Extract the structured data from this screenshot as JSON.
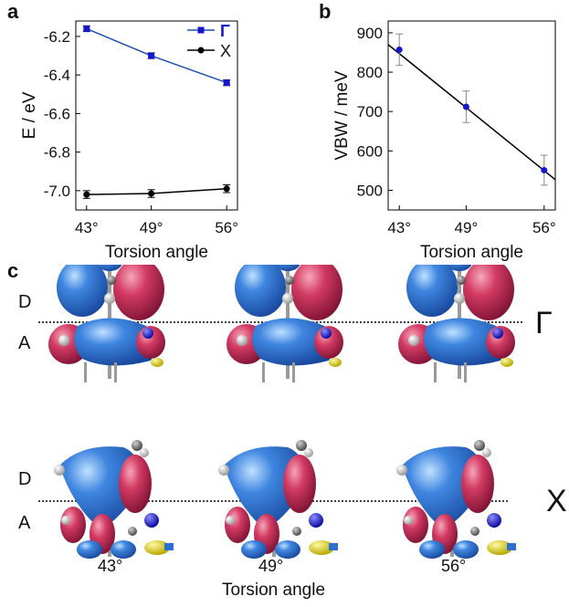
{
  "panel_labels": {
    "a": "a",
    "b": "b",
    "c": "c"
  },
  "chart_data": [
    {
      "type": "line",
      "panel": "a",
      "title": "",
      "xlabel": "Torsion angle",
      "ylabel": "E / eV",
      "x_ticks": [
        "43°",
        "49°",
        "56°"
      ],
      "x": [
        43,
        49,
        56
      ],
      "xlim": [
        42,
        57
      ],
      "ylim": [
        -7.1,
        -6.12
      ],
      "y_ticks": [
        -6.2,
        -6.4,
        -6.6,
        -6.8,
        -7.0
      ],
      "y_tick_labels": [
        "-6.2",
        "-6.4",
        "-6.6",
        "-6.8",
        "-7.0"
      ],
      "legend_position": "top-right",
      "series": [
        {
          "name": "Γ",
          "color": "#1f4fa8",
          "marker_color": "#1515d0",
          "marker": "square",
          "values": [
            -6.16,
            -6.3,
            -6.44
          ],
          "error": [
            0.015,
            0.015,
            0.015
          ]
        },
        {
          "name": "X",
          "color": "#000000",
          "marker_color": "#000000",
          "marker": "circle",
          "values": [
            -7.02,
            -7.015,
            -6.99
          ],
          "error": [
            0.02,
            0.02,
            0.02
          ]
        }
      ]
    },
    {
      "type": "line",
      "panel": "b",
      "title": "",
      "xlabel": "Torsion angle",
      "ylabel": "VBW / meV",
      "x_ticks": [
        "43°",
        "49°",
        "56°"
      ],
      "x": [
        43,
        49,
        56
      ],
      "xlim": [
        42,
        57
      ],
      "ylim": [
        450,
        930
      ],
      "y_ticks": [
        500,
        600,
        700,
        800,
        900
      ],
      "y_tick_labels": [
        "500",
        "600",
        "700",
        "800",
        "900"
      ],
      "series": [
        {
          "name": "",
          "color": "#000000",
          "marker_color": "#1515d0",
          "marker": "circle",
          "values": [
            857,
            712,
            551
          ],
          "error": [
            40,
            40,
            38
          ]
        }
      ],
      "fit_line": {
        "x": [
          42,
          57
        ],
        "y": [
          870,
          527
        ]
      }
    }
  ],
  "orbitals": {
    "donor_label": "D",
    "acceptor_label": "A",
    "gamma_symbol": "Γ",
    "x_symbol": "X",
    "angles": [
      "43°",
      "49°",
      "56°"
    ],
    "xlabel": "Torsion angle",
    "colors": {
      "positive": "#2f6fd0",
      "negative": "#d23a63",
      "nitrogen": "#1a1ad8",
      "sulfur": "#e0d21a",
      "carbon": "#888888",
      "hydrogen": "#f2f2f2"
    }
  }
}
